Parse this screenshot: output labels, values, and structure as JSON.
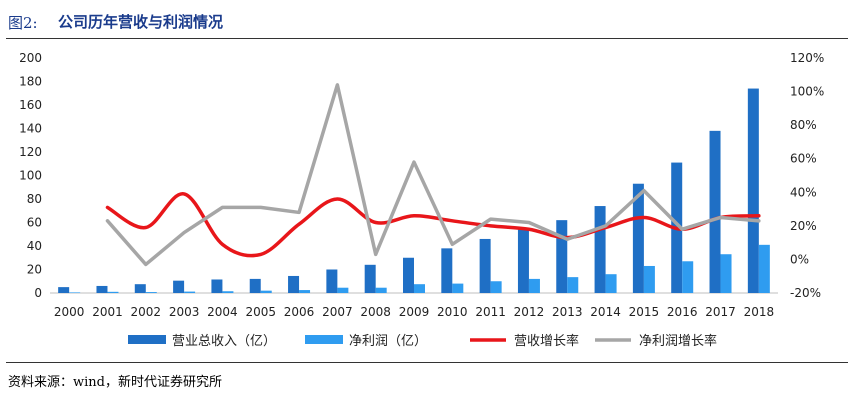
{
  "header": {
    "figure_label": "图2:",
    "title": "公司历年营收与利润情况"
  },
  "footer": {
    "source": "资料来源：wind，新时代证券研究所"
  },
  "chart_data": {
    "type": "bar",
    "categories": [
      "2000",
      "2001",
      "2002",
      "2003",
      "2004",
      "2005",
      "2006",
      "2007",
      "2008",
      "2009",
      "2010",
      "2011",
      "2012",
      "2013",
      "2014",
      "2015",
      "2016",
      "2017",
      "2018"
    ],
    "y_left": {
      "ticks": [
        "0",
        "20",
        "40",
        "60",
        "80",
        "100",
        "120",
        "140",
        "160",
        "180",
        "200"
      ],
      "ylim": [
        0,
        200
      ]
    },
    "y_right": {
      "ticks": [
        "-20%",
        "0%",
        "20%",
        "40%",
        "60%",
        "80%",
        "100%",
        "120%"
      ],
      "ylim": [
        -20,
        120
      ]
    },
    "series": [
      {
        "name": "营业总收入（亿）",
        "kind": "bar",
        "axis": "left",
        "color": "#1f6fc5",
        "values": [
          5,
          6,
          7.5,
          10.5,
          11.5,
          12,
          14.5,
          20,
          24,
          30,
          38,
          46,
          54,
          62,
          74,
          93,
          111,
          138,
          174
        ]
      },
      {
        "name": "净利润（亿）",
        "kind": "bar",
        "axis": "left",
        "color": "#2f9cf0",
        "values": [
          0.5,
          1,
          0.8,
          1.2,
          1.5,
          2,
          2.5,
          4.5,
          4.5,
          7.5,
          8,
          10,
          12,
          13.5,
          16,
          23,
          27,
          33,
          41
        ]
      },
      {
        "name": "营收增长率",
        "kind": "line",
        "axis": "right",
        "color": "#e8161a",
        "values": [
          null,
          31,
          19,
          39,
          9,
          3,
          21,
          36,
          22,
          26,
          23,
          20,
          18,
          13,
          19,
          25,
          18,
          25,
          26
        ]
      },
      {
        "name": "净利润增长率",
        "kind": "line",
        "axis": "right",
        "color": "#a6a6a6",
        "values": [
          null,
          23,
          -3,
          16,
          31,
          31,
          28,
          104,
          3,
          58,
          9,
          24,
          22,
          12,
          20,
          41,
          18,
          25,
          23
        ]
      }
    ],
    "legend_position": "bottom",
    "grid": false
  }
}
